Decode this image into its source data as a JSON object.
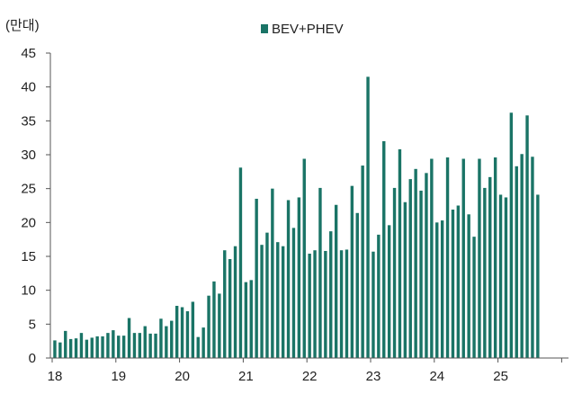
{
  "chart_data": {
    "type": "bar",
    "y_unit": "(만대)",
    "ylim": [
      0,
      45
    ],
    "y_ticks": [
      0,
      5,
      10,
      15,
      20,
      25,
      30,
      35,
      40,
      45
    ],
    "x_tick_labels": [
      "18",
      "19",
      "20",
      "21",
      "22",
      "23",
      "24",
      "25"
    ],
    "legend_position": "top-center",
    "grid": false,
    "series": [
      {
        "name": "BEV+PHEV",
        "color": "#1a7466",
        "x_start": "2018-01",
        "frequency": "monthly",
        "values": [
          2.6,
          2.3,
          4.0,
          2.8,
          2.9,
          3.7,
          2.7,
          3.0,
          3.2,
          3.2,
          3.7,
          4.1,
          3.3,
          3.3,
          5.9,
          3.7,
          3.7,
          4.7,
          3.6,
          3.6,
          5.8,
          4.7,
          5.5,
          7.7,
          7.5,
          6.9,
          8.3,
          3.1,
          4.5,
          9.2,
          11.3,
          9.5,
          15.9,
          14.6,
          16.5,
          28.1,
          11.2,
          11.5,
          23.5,
          16.7,
          18.5,
          25.0,
          17.1,
          16.5,
          23.3,
          19.2,
          23.7,
          29.4,
          15.4,
          15.9,
          25.1,
          15.8,
          18.7,
          22.6,
          15.9,
          16.0,
          25.4,
          21.4,
          28.4,
          41.5,
          15.7,
          18.2,
          32.0,
          19.6,
          25.1,
          30.8,
          23.0,
          26.4,
          27.9,
          24.7,
          27.3,
          29.4,
          20.0,
          20.3,
          29.6,
          21.9,
          22.5,
          29.4,
          21.2,
          17.9,
          29.4,
          25.1,
          26.7,
          29.6,
          24.1,
          23.7,
          36.2,
          28.3,
          30.1,
          35.8,
          29.7,
          24.1
        ]
      }
    ]
  }
}
